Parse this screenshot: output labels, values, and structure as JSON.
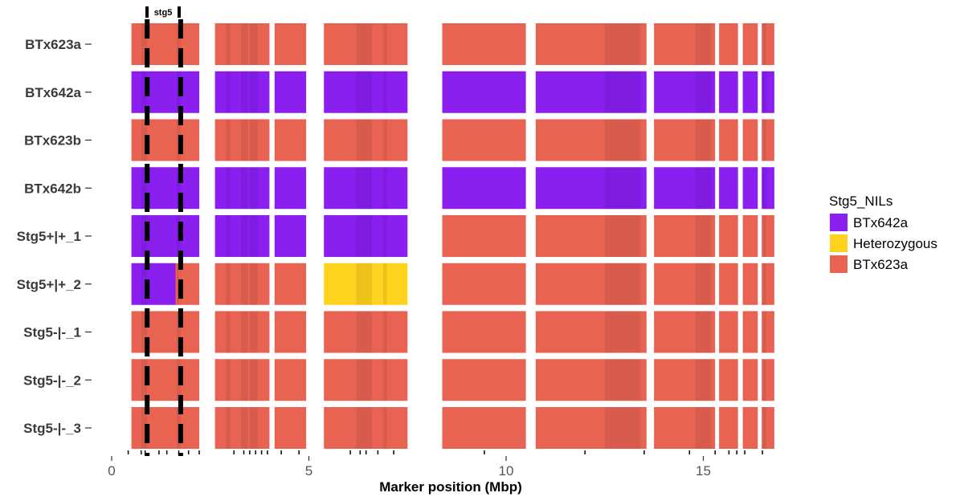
{
  "colors": {
    "BTx642a": "#8a1ff0",
    "Heterozygous": "#ffd21e",
    "BTx623a": "#e96353"
  },
  "chart_data": {
    "type": "heatmap",
    "xlabel": "Marker position (Mbp)",
    "xlim": [
      0,
      16.8
    ],
    "xticks": [
      0,
      5,
      10,
      15
    ],
    "rows": [
      "BTx623a",
      "BTx642a",
      "BTx623b",
      "BTx642b",
      "Stg5+|+_1",
      "Stg5+|+_2",
      "Stg5-|-_1",
      "Stg5-|-_2",
      "Stg5-|-_3"
    ],
    "segments": [
      {
        "start": 0.5,
        "end": 2.22
      },
      {
        "start": 2.62,
        "end": 4.0
      },
      {
        "start": 4.13,
        "end": 4.93
      },
      {
        "start": 5.38,
        "end": 7.5
      },
      {
        "start": 8.38,
        "end": 10.5
      },
      {
        "start": 10.75,
        "end": 13.56
      },
      {
        "start": 13.75,
        "end": 15.3
      },
      {
        "start": 15.4,
        "end": 15.88
      },
      {
        "start": 16.0,
        "end": 16.38
      },
      {
        "start": 16.48,
        "end": 16.8
      }
    ],
    "genotypes": [
      [
        [
          [
            0.5,
            2.22,
            "BTx623a"
          ]
        ],
        [
          [
            2.62,
            4.0,
            "BTx623a"
          ]
        ],
        [
          [
            4.13,
            4.93,
            "BTx623a"
          ]
        ],
        [
          [
            5.38,
            7.5,
            "BTx623a"
          ]
        ],
        [
          [
            8.38,
            10.5,
            "BTx623a"
          ]
        ],
        [
          [
            10.75,
            13.56,
            "BTx623a"
          ]
        ],
        [
          [
            13.75,
            15.3,
            "BTx623a"
          ]
        ],
        [
          [
            15.4,
            15.88,
            "BTx623a"
          ]
        ],
        [
          [
            16.0,
            16.38,
            "BTx623a"
          ]
        ],
        [
          [
            16.48,
            16.8,
            "BTx623a"
          ]
        ]
      ],
      [
        [
          [
            0.5,
            2.22,
            "BTx642a"
          ]
        ],
        [
          [
            2.62,
            4.0,
            "BTx642a"
          ]
        ],
        [
          [
            4.13,
            4.93,
            "BTx642a"
          ]
        ],
        [
          [
            5.38,
            7.5,
            "BTx642a"
          ]
        ],
        [
          [
            8.38,
            10.5,
            "BTx642a"
          ]
        ],
        [
          [
            10.75,
            13.56,
            "BTx642a"
          ]
        ],
        [
          [
            13.75,
            15.3,
            "BTx642a"
          ]
        ],
        [
          [
            15.4,
            15.88,
            "BTx642a"
          ]
        ],
        [
          [
            16.0,
            16.38,
            "BTx642a"
          ]
        ],
        [
          [
            16.48,
            16.8,
            "BTx642a"
          ]
        ]
      ],
      [
        [
          [
            0.5,
            2.22,
            "BTx623a"
          ]
        ],
        [
          [
            2.62,
            4.0,
            "BTx623a"
          ]
        ],
        [
          [
            4.13,
            4.93,
            "BTx623a"
          ]
        ],
        [
          [
            5.38,
            7.5,
            "BTx623a"
          ]
        ],
        [
          [
            8.38,
            10.5,
            "BTx623a"
          ]
        ],
        [
          [
            10.75,
            13.56,
            "BTx623a"
          ]
        ],
        [
          [
            13.75,
            15.3,
            "BTx623a"
          ]
        ],
        [
          [
            15.4,
            15.88,
            "BTx623a"
          ]
        ],
        [
          [
            16.0,
            16.38,
            "BTx623a"
          ]
        ],
        [
          [
            16.48,
            16.8,
            "BTx623a"
          ]
        ]
      ],
      [
        [
          [
            0.5,
            2.22,
            "BTx642a"
          ]
        ],
        [
          [
            2.62,
            4.0,
            "BTx642a"
          ]
        ],
        [
          [
            4.13,
            4.93,
            "BTx642a"
          ]
        ],
        [
          [
            5.38,
            7.5,
            "BTx642a"
          ]
        ],
        [
          [
            8.38,
            10.5,
            "BTx642a"
          ]
        ],
        [
          [
            10.75,
            13.56,
            "BTx642a"
          ]
        ],
        [
          [
            13.75,
            15.3,
            "BTx642a"
          ]
        ],
        [
          [
            15.4,
            15.88,
            "BTx642a"
          ]
        ],
        [
          [
            16.0,
            16.38,
            "BTx642a"
          ]
        ],
        [
          [
            16.48,
            16.8,
            "BTx642a"
          ]
        ]
      ],
      [
        [
          [
            0.5,
            2.22,
            "BTx642a"
          ]
        ],
        [
          [
            2.62,
            4.0,
            "BTx642a"
          ]
        ],
        [
          [
            4.13,
            4.93,
            "BTx642a"
          ]
        ],
        [
          [
            5.38,
            7.5,
            "BTx642a"
          ]
        ],
        [
          [
            8.38,
            10.5,
            "BTx623a"
          ]
        ],
        [
          [
            10.75,
            13.56,
            "BTx623a"
          ]
        ],
        [
          [
            13.75,
            15.3,
            "BTx623a"
          ]
        ],
        [
          [
            15.4,
            15.88,
            "BTx623a"
          ]
        ],
        [
          [
            16.0,
            16.38,
            "BTx623a"
          ]
        ],
        [
          [
            16.48,
            16.8,
            "BTx623a"
          ]
        ]
      ],
      [
        [
          [
            0.5,
            1.62,
            "BTx642a"
          ],
          [
            1.62,
            1.72,
            "BTx623a"
          ],
          [
            1.72,
            2.22,
            "BTx623a"
          ]
        ],
        [
          [
            2.62,
            4.0,
            "BTx623a"
          ]
        ],
        [
          [
            4.13,
            4.93,
            "BTx623a"
          ]
        ],
        [
          [
            5.38,
            7.5,
            "Heterozygous"
          ]
        ],
        [
          [
            8.38,
            10.5,
            "BTx623a"
          ]
        ],
        [
          [
            10.75,
            13.56,
            "BTx623a"
          ]
        ],
        [
          [
            13.75,
            15.3,
            "BTx623a"
          ]
        ],
        [
          [
            15.4,
            15.88,
            "BTx623a"
          ]
        ],
        [
          [
            16.0,
            16.38,
            "BTx623a"
          ]
        ],
        [
          [
            16.48,
            16.8,
            "BTx623a"
          ]
        ]
      ],
      [
        [
          [
            0.5,
            2.22,
            "BTx623a"
          ]
        ],
        [
          [
            2.62,
            4.0,
            "BTx623a"
          ]
        ],
        [
          [
            4.13,
            4.93,
            "BTx623a"
          ]
        ],
        [
          [
            5.38,
            7.5,
            "BTx623a"
          ]
        ],
        [
          [
            8.38,
            10.5,
            "BTx623a"
          ]
        ],
        [
          [
            10.75,
            13.56,
            "BTx623a"
          ]
        ],
        [
          [
            13.75,
            15.3,
            "BTx623a"
          ]
        ],
        [
          [
            15.4,
            15.88,
            "BTx623a"
          ]
        ],
        [
          [
            16.0,
            16.38,
            "BTx623a"
          ]
        ],
        [
          [
            16.48,
            16.8,
            "BTx623a"
          ]
        ]
      ],
      [
        [
          [
            0.5,
            2.22,
            "BTx623a"
          ]
        ],
        [
          [
            2.62,
            4.0,
            "BTx623a"
          ]
        ],
        [
          [
            4.13,
            4.93,
            "BTx623a"
          ]
        ],
        [
          [
            5.38,
            7.5,
            "BTx623a"
          ]
        ],
        [
          [
            8.38,
            10.5,
            "BTx623a"
          ]
        ],
        [
          [
            10.75,
            13.56,
            "BTx623a"
          ]
        ],
        [
          [
            13.75,
            15.3,
            "BTx623a"
          ]
        ],
        [
          [
            15.4,
            15.88,
            "BTx623a"
          ]
        ],
        [
          [
            16.0,
            16.38,
            "BTx623a"
          ]
        ],
        [
          [
            16.48,
            16.8,
            "BTx623a"
          ]
        ]
      ],
      [
        [
          [
            0.5,
            2.22,
            "BTx623a"
          ]
        ],
        [
          [
            2.62,
            4.0,
            "BTx623a"
          ]
        ],
        [
          [
            4.13,
            4.93,
            "BTx623a"
          ]
        ],
        [
          [
            5.38,
            7.5,
            "BTx623a"
          ]
        ],
        [
          [
            8.38,
            10.5,
            "BTx623a"
          ]
        ],
        [
          [
            10.75,
            13.56,
            "BTx623a"
          ]
        ],
        [
          [
            13.75,
            15.3,
            "BTx623a"
          ]
        ],
        [
          [
            15.4,
            15.88,
            "BTx623a"
          ]
        ],
        [
          [
            16.0,
            16.38,
            "BTx623a"
          ]
        ],
        [
          [
            16.48,
            16.8,
            "BTx623a"
          ]
        ]
      ]
    ],
    "dense_regions": [
      [
        0.75,
        0.9
      ],
      [
        1.65,
        1.75
      ],
      [
        2.9,
        3.0
      ],
      [
        3.28,
        3.45
      ],
      [
        3.5,
        3.7
      ],
      [
        6.2,
        6.6
      ],
      [
        6.88,
        6.98
      ],
      [
        12.5,
        13.4
      ],
      [
        14.8,
        15.2
      ],
      [
        16.5,
        16.6
      ]
    ],
    "marker_positions": [
      0.42,
      0.75,
      0.85,
      1.2,
      1.4,
      1.7,
      1.95,
      2.22,
      3.1,
      3.35,
      3.5,
      3.65,
      3.8,
      3.95,
      4.3,
      4.75,
      6.05,
      6.3,
      6.45,
      6.75,
      7.15,
      9.45,
      12.0,
      13.5,
      14.65,
      15.3,
      15.65,
      15.85,
      16.05,
      16.5
    ],
    "qtl": {
      "label": "stg5",
      "bounds": [
        0.9,
        1.75
      ]
    },
    "legend": {
      "title": "Stg5_NILs",
      "items": [
        "BTx642a",
        "Heterozygous",
        "BTx623a"
      ],
      "position": "right"
    }
  }
}
